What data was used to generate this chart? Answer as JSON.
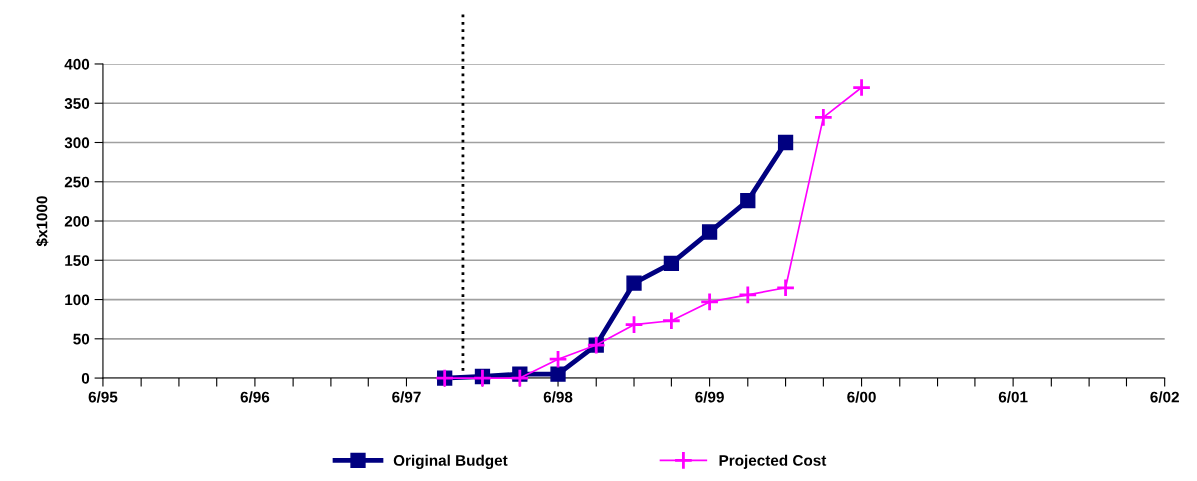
{
  "chart_data": {
    "type": "line",
    "ylabel": "$x1000",
    "series": [
      {
        "name": "Original Budget",
        "color": "#000080",
        "marker": "square",
        "x": [
          "1997-09",
          "1997-12",
          "1998-03",
          "1998-06",
          "1998-09",
          "1998-12",
          "1999-03",
          "1999-06",
          "1999-09",
          "1999-12"
        ],
        "values": [
          0,
          2,
          5,
          5,
          42,
          121,
          146,
          186,
          226,
          300
        ]
      },
      {
        "name": "Projected Cost",
        "color": "#ff00ff",
        "marker": "cross",
        "x": [
          "1997-09",
          "1997-12",
          "1998-03",
          "1998-06",
          "1998-09",
          "1998-12",
          "1999-03",
          "1999-06",
          "1999-09",
          "1999-12",
          "2000-03",
          "2000-06"
        ],
        "values": [
          0,
          0,
          0,
          24,
          42,
          68,
          73,
          97,
          106,
          115,
          332,
          370
        ]
      }
    ],
    "xlim": [
      "1995-06",
      "2002-06"
    ],
    "xticks": [
      {
        "value": "1995-06",
        "label": "6/95"
      },
      {
        "value": "1995-09",
        "label": null
      },
      {
        "value": "1995-12",
        "label": null
      },
      {
        "value": "1996-03",
        "label": null
      },
      {
        "value": "1996-06",
        "label": "6/96"
      },
      {
        "value": "1996-09",
        "label": null
      },
      {
        "value": "1996-12",
        "label": null
      },
      {
        "value": "1997-03",
        "label": null
      },
      {
        "value": "1997-06",
        "label": "6/97"
      },
      {
        "value": "1997-09",
        "label": null
      },
      {
        "value": "1997-12",
        "label": null
      },
      {
        "value": "1998-03",
        "label": null
      },
      {
        "value": "1998-06",
        "label": "6/98"
      },
      {
        "value": "1998-09",
        "label": null
      },
      {
        "value": "1998-12",
        "label": null
      },
      {
        "value": "1999-03",
        "label": null
      },
      {
        "value": "1999-06",
        "label": "6/99"
      },
      {
        "value": "1999-09",
        "label": null
      },
      {
        "value": "1999-12",
        "label": null
      },
      {
        "value": "2000-03",
        "label": null
      },
      {
        "value": "2000-06",
        "label": "6/00"
      },
      {
        "value": "2000-09",
        "label": null
      },
      {
        "value": "2000-12",
        "label": null
      },
      {
        "value": "2001-03",
        "label": null
      },
      {
        "value": "2001-06",
        "label": "6/01"
      },
      {
        "value": "2001-09",
        "label": null
      },
      {
        "value": "2001-12",
        "label": null
      },
      {
        "value": "2002-03",
        "label": null
      },
      {
        "value": "2002-06",
        "label": "6/02"
      }
    ],
    "ylim": [
      0,
      400
    ],
    "yticks": [
      0,
      50,
      100,
      150,
      200,
      250,
      300,
      350,
      400
    ],
    "grid": "y",
    "legend": "bottom",
    "ref_lines": [
      {
        "axis": "x",
        "value": "1997-10-15",
        "label": null,
        "color": "#000000",
        "line_style": "dotted"
      }
    ]
  }
}
